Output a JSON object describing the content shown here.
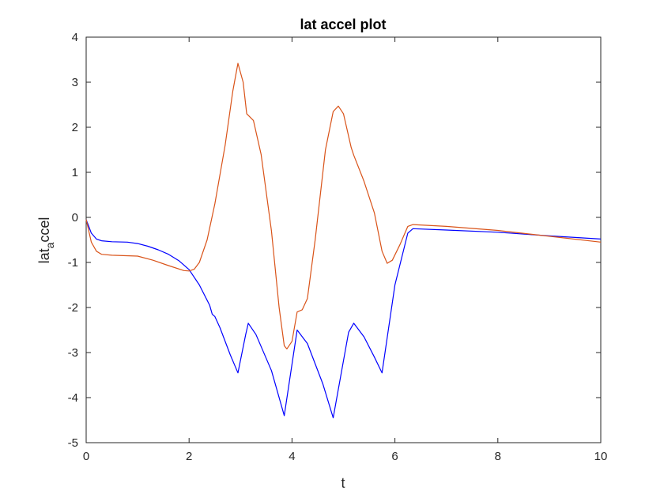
{
  "chart_data": {
    "type": "line",
    "title": "lat accel plot",
    "xlabel": "t",
    "ylabel": {
      "main": "lat",
      "subscript": "a",
      "rest": "ccel"
    },
    "xlim": [
      0,
      10
    ],
    "ylim": [
      -5,
      4
    ],
    "x_ticks": [
      "0",
      "2",
      "4",
      "6",
      "8",
      "10"
    ],
    "y_ticks": [
      "4",
      "3",
      "2",
      "1",
      "0",
      "-1",
      "-2",
      "-3",
      "-4",
      "-5"
    ],
    "grid": false,
    "legend": "none",
    "series": [
      {
        "color": "#0000ff",
        "points": [
          [
            0,
            -0.05
          ],
          [
            0.05,
            -0.2
          ],
          [
            0.1,
            -0.35
          ],
          [
            0.2,
            -0.48
          ],
          [
            0.3,
            -0.52
          ],
          [
            0.5,
            -0.54
          ],
          [
            0.8,
            -0.55
          ],
          [
            1.0,
            -0.58
          ],
          [
            1.2,
            -0.64
          ],
          [
            1.4,
            -0.72
          ],
          [
            1.6,
            -0.82
          ],
          [
            1.8,
            -0.96
          ],
          [
            2.0,
            -1.16
          ],
          [
            2.2,
            -1.5
          ],
          [
            2.4,
            -1.95
          ],
          [
            2.45,
            -2.15
          ],
          [
            2.5,
            -2.2
          ],
          [
            2.6,
            -2.45
          ],
          [
            2.8,
            -3.05
          ],
          [
            2.95,
            -3.45
          ],
          [
            3.1,
            -2.6
          ],
          [
            3.15,
            -2.35
          ],
          [
            3.3,
            -2.6
          ],
          [
            3.6,
            -3.4
          ],
          [
            3.85,
            -4.4
          ],
          [
            4.1,
            -2.5
          ],
          [
            4.3,
            -2.8
          ],
          [
            4.6,
            -3.7
          ],
          [
            4.8,
            -4.45
          ],
          [
            5.1,
            -2.55
          ],
          [
            5.2,
            -2.35
          ],
          [
            5.4,
            -2.65
          ],
          [
            5.6,
            -3.1
          ],
          [
            5.75,
            -3.45
          ],
          [
            6.0,
            -1.5
          ],
          [
            6.25,
            -0.35
          ],
          [
            6.35,
            -0.25
          ],
          [
            7.0,
            -0.28
          ],
          [
            8.0,
            -0.33
          ],
          [
            9.0,
            -0.41
          ],
          [
            10.0,
            -0.48
          ]
        ]
      },
      {
        "color": "#d95319",
        "points": [
          [
            0,
            -0.05
          ],
          [
            0.05,
            -0.3
          ],
          [
            0.1,
            -0.55
          ],
          [
            0.2,
            -0.75
          ],
          [
            0.3,
            -0.82
          ],
          [
            0.5,
            -0.84
          ],
          [
            1.0,
            -0.86
          ],
          [
            1.3,
            -0.95
          ],
          [
            1.6,
            -1.07
          ],
          [
            1.9,
            -1.18
          ],
          [
            2.0,
            -1.19
          ],
          [
            2.1,
            -1.15
          ],
          [
            2.2,
            -1.0
          ],
          [
            2.35,
            -0.5
          ],
          [
            2.5,
            0.3
          ],
          [
            2.7,
            1.6
          ],
          [
            2.85,
            2.8
          ],
          [
            2.95,
            3.42
          ],
          [
            3.05,
            3.0
          ],
          [
            3.12,
            2.3
          ],
          [
            3.25,
            2.15
          ],
          [
            3.4,
            1.4
          ],
          [
            3.6,
            -0.3
          ],
          [
            3.75,
            -2.0
          ],
          [
            3.85,
            -2.85
          ],
          [
            3.9,
            -2.92
          ],
          [
            4.0,
            -2.75
          ],
          [
            4.1,
            -2.1
          ],
          [
            4.2,
            -2.05
          ],
          [
            4.3,
            -1.8
          ],
          [
            4.45,
            -0.5
          ],
          [
            4.65,
            1.5
          ],
          [
            4.8,
            2.35
          ],
          [
            4.9,
            2.47
          ],
          [
            5.0,
            2.3
          ],
          [
            5.15,
            1.55
          ],
          [
            5.2,
            1.38
          ],
          [
            5.4,
            0.8
          ],
          [
            5.6,
            0.1
          ],
          [
            5.75,
            -0.75
          ],
          [
            5.85,
            -1.02
          ],
          [
            5.95,
            -0.95
          ],
          [
            6.1,
            -0.6
          ],
          [
            6.25,
            -0.2
          ],
          [
            6.35,
            -0.16
          ],
          [
            7.0,
            -0.2
          ],
          [
            8.0,
            -0.29
          ],
          [
            9.0,
            -0.42
          ],
          [
            10.0,
            -0.55
          ]
        ]
      }
    ]
  }
}
